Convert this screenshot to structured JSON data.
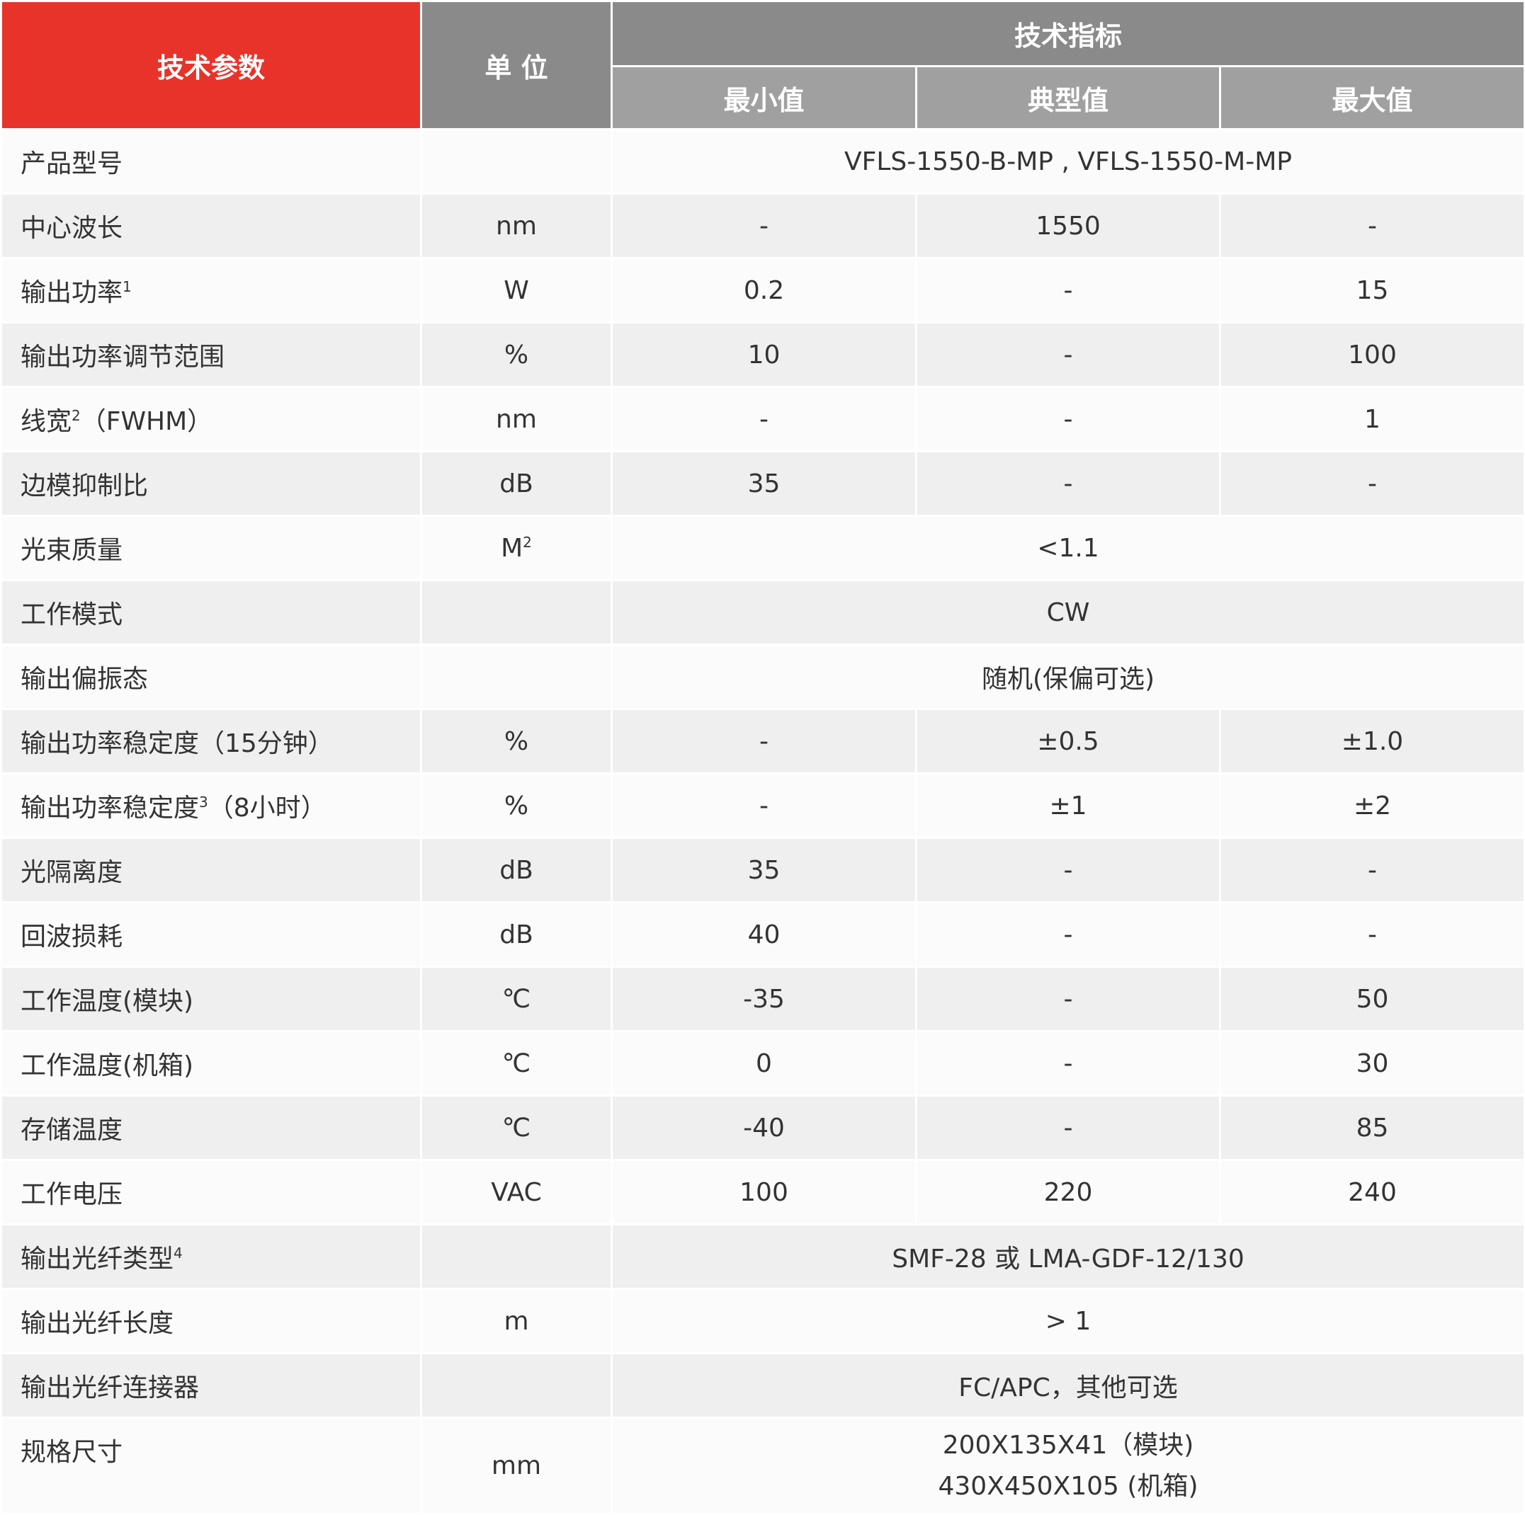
{
  "header": {
    "param": "技术参数",
    "unit": "单 位",
    "spec": "技术指标",
    "min": "最小值",
    "typ": "典型值",
    "max": "最大值"
  },
  "colors": {
    "accent_red": "#e8332a",
    "header_grey": "#8a8a8a",
    "subheader_grey": "#a0a0a0",
    "row_light": "#fbfbfb",
    "row_alt": "#efefef"
  },
  "rows": [
    {
      "param": "产品型号",
      "unit": "",
      "span": "VFLS-1550-B-MP , VFLS-1550-M-MP"
    },
    {
      "param": "中心波长",
      "unit": "nm",
      "min": "-",
      "typ": "1550",
      "max": "-"
    },
    {
      "param": "输出功率",
      "sup": "1",
      "unit": "W",
      "min": "0.2",
      "typ": "-",
      "max": "15"
    },
    {
      "param": "输出功率调节范围",
      "unit": "%",
      "min": "10",
      "typ": "-",
      "max": "100"
    },
    {
      "param": "线宽",
      "sup": "2",
      "suffix": "（FWHM）",
      "unit": "nm",
      "min": "-",
      "typ": "-",
      "max": "1"
    },
    {
      "param": "边模抑制比",
      "unit": "dB",
      "min": "35",
      "typ": "-",
      "max": "-"
    },
    {
      "param": "光束质量",
      "unit": "M",
      "unit_sup": "2",
      "span": "<1.1"
    },
    {
      "param": "工作模式",
      "unit": "",
      "span": "CW"
    },
    {
      "param": "输出偏振态",
      "unit": "",
      "span": "随机(保偏可选)"
    },
    {
      "param": "输出功率稳定度（15分钟）",
      "unit": "%",
      "min": "-",
      "typ": "±0.5",
      "max": "±1.0"
    },
    {
      "param": "输出功率稳定度",
      "sup": "3",
      "suffix": "（8小时）",
      "unit": "%",
      "min": "-",
      "typ": "±1",
      "max": "±2"
    },
    {
      "param": "光隔离度",
      "unit": "dB",
      "min": "35",
      "typ": "-",
      "max": "-"
    },
    {
      "param": "回波损耗",
      "unit": "dB",
      "min": "40",
      "typ": "-",
      "max": "-"
    },
    {
      "param": "工作温度(模块)",
      "unit": "℃",
      "min": "-35",
      "typ": "-",
      "max": "50"
    },
    {
      "param": "工作温度(机箱)",
      "unit": "℃",
      "min": "0",
      "typ": "-",
      "max": "30"
    },
    {
      "param": "存储温度",
      "unit": "℃",
      "min": "-40",
      "typ": "-",
      "max": "85"
    },
    {
      "param": "工作电压",
      "unit": "VAC",
      "min": "100",
      "typ": "220",
      "max": "240"
    },
    {
      "param": "输出光纤类型",
      "sup": "4",
      "unit": "",
      "span": "SMF-28 或 LMA-GDF-12/130"
    },
    {
      "param": "输出光纤长度",
      "unit": "m",
      "span": "> 1"
    },
    {
      "param": "输出光纤连接器",
      "unit": "",
      "span": "FC/APC，其他可选"
    },
    {
      "param": "规格尺寸",
      "unit": "mm",
      "span_lines": [
        "200X135X41（模块)",
        "430X450X105 (机箱)"
      ]
    }
  ]
}
